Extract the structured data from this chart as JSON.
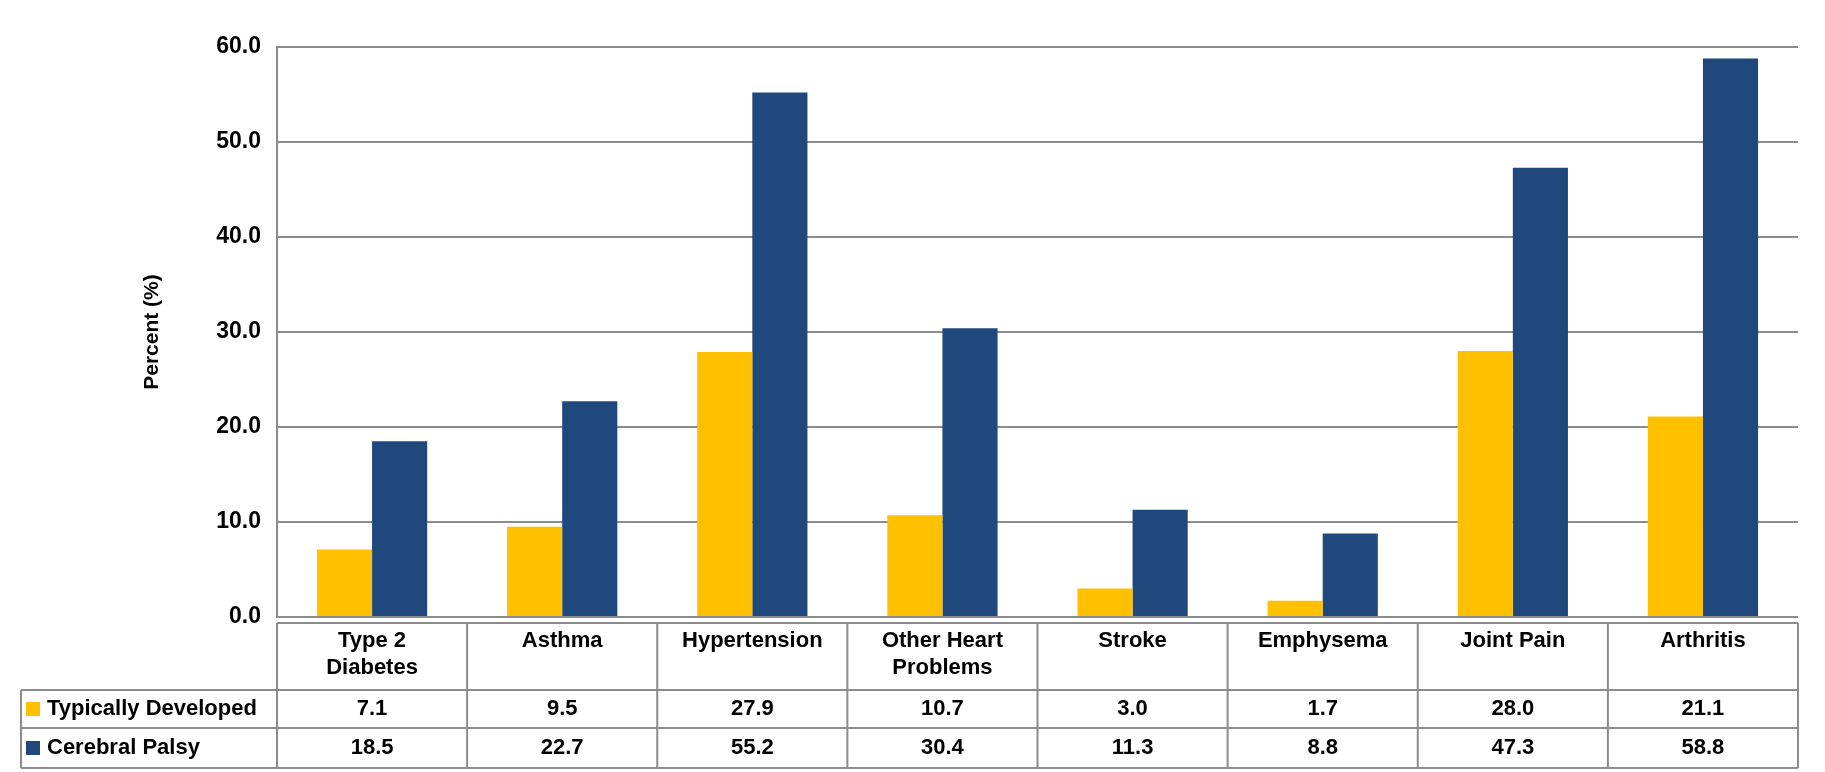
{
  "chart_data": {
    "type": "bar",
    "ylabel": "Percent (%)",
    "categories": [
      "Type 2 Diabetes",
      "Asthma",
      "Hypertension",
      "Other Heart Problems",
      "Stroke",
      "Emphysema",
      "Joint Pain",
      "Arthritis"
    ],
    "series": [
      {
        "name": "Typically Developed",
        "color": "#ffc000",
        "values": [
          7.1,
          9.5,
          27.9,
          10.7,
          3.0,
          1.7,
          28.0,
          21.1
        ],
        "value_labels": [
          "7.1",
          "9.5",
          "27.9",
          "10.7",
          "3.0",
          "1.7",
          "28.0",
          "21.1"
        ]
      },
      {
        "name": "Cerebral Palsy",
        "color": "#1f497d",
        "values": [
          18.5,
          22.7,
          55.2,
          30.4,
          11.3,
          8.8,
          47.3,
          58.8
        ],
        "value_labels": [
          "18.5",
          "22.7",
          "55.2",
          "30.4",
          "11.3",
          "8.8",
          "47.3",
          "58.8"
        ]
      }
    ],
    "ylim": [
      0,
      60
    ],
    "yticks": [
      {
        "value": 0,
        "label": "0.0"
      },
      {
        "value": 10,
        "label": "10.0"
      },
      {
        "value": 20,
        "label": "20.0"
      },
      {
        "value": 30,
        "label": "30.0"
      },
      {
        "value": 40,
        "label": "40.0"
      },
      {
        "value": 50,
        "label": "50.0"
      },
      {
        "value": 60,
        "label": "60.0"
      }
    ],
    "grid": "y",
    "legend": "bottom"
  }
}
